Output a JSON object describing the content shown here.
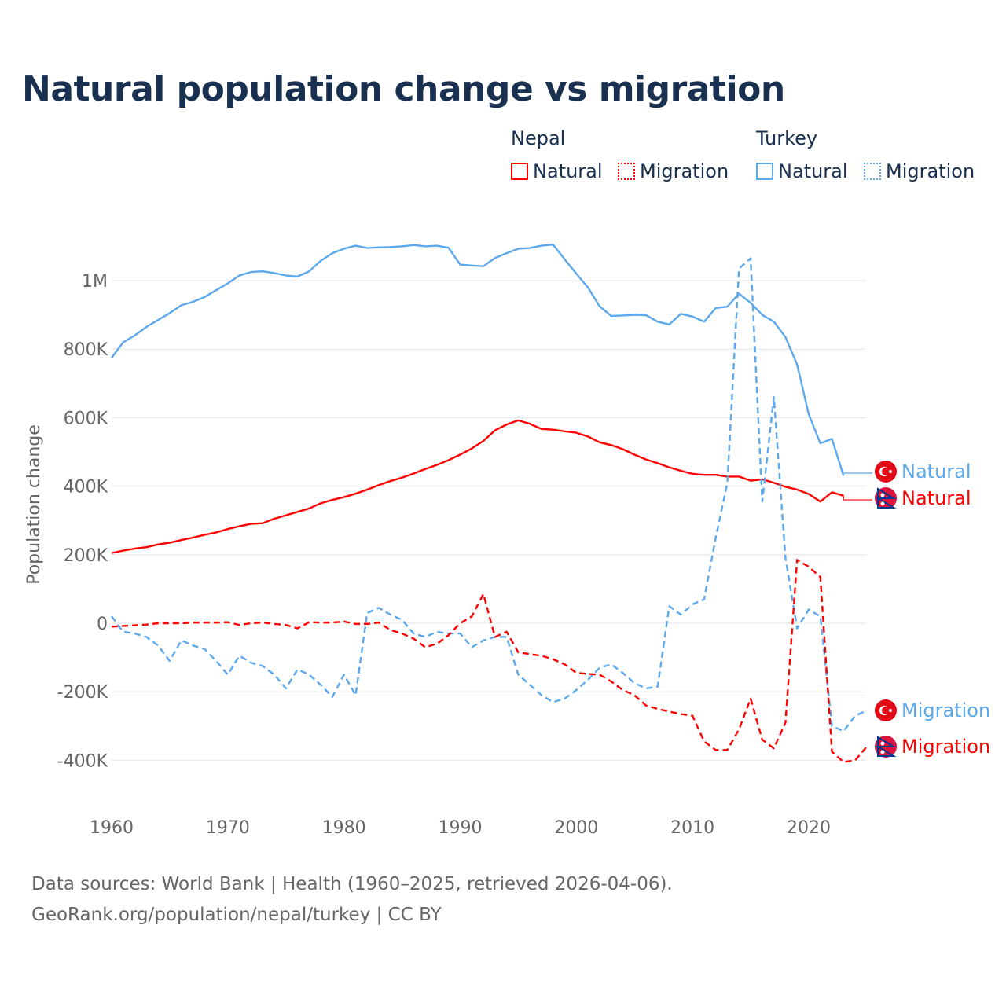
{
  "title": "Natural population change vs migration",
  "legend": {
    "groups": [
      {
        "name": "Nepal",
        "items": [
          "Natural",
          "Migration"
        ],
        "color": "#ff0000"
      },
      {
        "name": "Turkey",
        "items": [
          "Natural",
          "Migration"
        ],
        "color": "#5ca8ec"
      }
    ]
  },
  "footer": {
    "line1": "Data sources: World Bank | Health (1960–2025, retrieved 2026-04-06).",
    "line2": "GeoRank.org/population/nepal/turkey | CC BY"
  },
  "chart_data": {
    "type": "line",
    "title": "Natural population change vs migration",
    "xlabel": "",
    "ylabel": "Population change",
    "xlim": [
      1960,
      2025
    ],
    "ylim": [
      -500000,
      1150000
    ],
    "x_ticks": [
      "1960",
      "1970",
      "1980",
      "1990",
      "2000",
      "2010",
      "2020"
    ],
    "y_ticks": [
      {
        "value": -400000,
        "label": "-400K"
      },
      {
        "value": -200000,
        "label": "-200K"
      },
      {
        "value": 0,
        "label": "0"
      },
      {
        "value": 200000,
        "label": "200K"
      },
      {
        "value": 400000,
        "label": "400K"
      },
      {
        "value": 600000,
        "label": "600K"
      },
      {
        "value": 800000,
        "label": "800K"
      },
      {
        "value": 1000000,
        "label": "1M"
      }
    ],
    "grid": true,
    "legend_position": "top-right",
    "end_labels": [
      "Natural",
      "Natural",
      "Migration",
      "Migration"
    ],
    "series": [
      {
        "name": "Turkey Natural",
        "country": "Turkey",
        "kind": "Natural",
        "color": "#5ca8ec",
        "dashed": false,
        "start": 1960,
        "end_value_k": 438,
        "values_k": [
          775,
          820,
          840,
          865,
          885,
          905,
          928,
          938,
          952,
          972,
          992,
          1015,
          1025,
          1027,
          1022,
          1015,
          1012,
          1027,
          1058,
          1080,
          1093,
          1102,
          1095,
          1097,
          1098,
          1100,
          1104,
          1100,
          1102,
          1096,
          1047,
          1044,
          1042,
          1066,
          1080,
          1093,
          1095,
          1102,
          1105,
          1062,
          1020,
          980,
          925,
          897,
          898,
          900,
          899,
          880,
          872,
          903,
          895,
          880,
          920,
          924,
          962,
          935,
          900,
          880,
          835,
          755,
          610,
          525,
          538,
          430
        ]
      },
      {
        "name": "Nepal Natural",
        "country": "Nepal",
        "kind": "Natural",
        "color": "#ff0000",
        "dashed": false,
        "start": 1960,
        "end_value_k": 360,
        "values_k": [
          205,
          212,
          218,
          222,
          230,
          235,
          243,
          250,
          258,
          265,
          275,
          283,
          290,
          292,
          305,
          315,
          325,
          335,
          350,
          360,
          368,
          378,
          390,
          403,
          415,
          425,
          437,
          450,
          462,
          476,
          492,
          510,
          532,
          563,
          580,
          592,
          582,
          567,
          565,
          560,
          556,
          545,
          528,
          520,
          508,
          492,
          478,
          467,
          455,
          445,
          436,
          433,
          433,
          428,
          428,
          416,
          420,
          410,
          398,
          390,
          377,
          355,
          382,
          372
        ]
      },
      {
        "name": "Turkey Migration",
        "country": "Turkey",
        "kind": "Migration",
        "color": "#5ca8ec",
        "dashed": true,
        "start": 1960,
        "values_k": [
          20,
          -25,
          -30,
          -40,
          -65,
          -110,
          -50,
          -65,
          -75,
          -110,
          -150,
          -95,
          -115,
          -125,
          -150,
          -190,
          -135,
          -150,
          -180,
          -215,
          -150,
          -210,
          30,
          45,
          25,
          10,
          -30,
          -40,
          -25,
          -30,
          -30,
          -70,
          -50,
          -40,
          -40,
          -150,
          -180,
          -210,
          -230,
          -220,
          -195,
          -165,
          -130,
          -120,
          -145,
          -175,
          -190,
          -185,
          50,
          25,
          55,
          70,
          250,
          410,
          1035,
          1065,
          355,
          660,
          190,
          -15,
          40,
          20,
          -300,
          -315,
          -270,
          -255
        ]
      },
      {
        "name": "Nepal Migration",
        "country": "Nepal",
        "kind": "Migration",
        "color": "#ff0000",
        "dashed": true,
        "start": 1960,
        "values_k": [
          -10,
          -8,
          -6,
          -4,
          0,
          0,
          0,
          2,
          2,
          2,
          3,
          -5,
          0,
          2,
          -2,
          -5,
          -15,
          3,
          2,
          2,
          5,
          -2,
          -2,
          2,
          -20,
          -30,
          -45,
          -70,
          -60,
          -35,
          0,
          20,
          85,
          -40,
          -25,
          -85,
          -90,
          -95,
          -105,
          -120,
          -145,
          -148,
          -150,
          -170,
          -195,
          -210,
          -240,
          -250,
          -258,
          -265,
          -270,
          -345,
          -370,
          -370,
          -310,
          -220,
          -340,
          -365,
          -290,
          185,
          165,
          135,
          -375,
          -405,
          -400,
          -360
        ]
      }
    ]
  }
}
